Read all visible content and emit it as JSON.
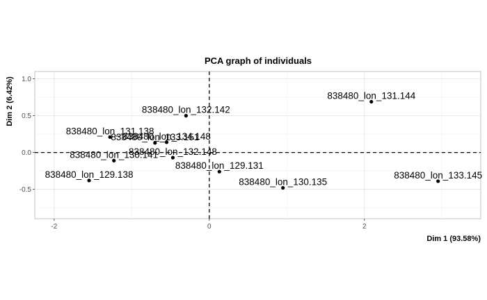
{
  "chart_data": {
    "type": "scatter",
    "title": "PCA graph of individuals",
    "xlabel": "Dim 1 (93.58%)",
    "ylabel": "Dim 2 (6.42%)",
    "xlim": [
      -2.25,
      3.5
    ],
    "ylim": [
      -0.9,
      1.1
    ],
    "xticks": [
      -2,
      0,
      2
    ],
    "xtick_labels": [
      "-2",
      "0",
      "2"
    ],
    "yticks": [
      -0.5,
      0.0,
      0.5,
      1.0
    ],
    "ytick_labels": [
      "-0.5",
      "0.0",
      "0.5",
      "1.0"
    ],
    "grid": true,
    "reference_lines": {
      "x": 0,
      "y": 0,
      "style": "dashed"
    },
    "points": [
      {
        "label": "838480_lon_131.144",
        "x": 2.09,
        "y": 0.69
      },
      {
        "label": "838480_lon_132.142",
        "x": -0.3,
        "y": 0.5
      },
      {
        "label": "838480_lon_131.138",
        "x": -1.28,
        "y": 0.21
      },
      {
        "label": "838480_lon_134.148",
        "x": -0.55,
        "y": 0.14
      },
      {
        "label": "838480_lon_133.151",
        "x": -0.7,
        "y": 0.13
      },
      {
        "label": "838480_lon_132.148",
        "x": -0.47,
        "y": -0.07
      },
      {
        "label": "838480_lon_130.141",
        "x": -1.23,
        "y": -0.11
      },
      {
        "label": "838480_lon_129.131",
        "x": 0.13,
        "y": -0.26
      },
      {
        "label": "838480_lon_129.138",
        "x": -1.55,
        "y": -0.38
      },
      {
        "label": "838480_lon_130.135",
        "x": 0.95,
        "y": -0.48
      },
      {
        "label": "838480_lon_133.145",
        "x": 2.95,
        "y": -0.39
      }
    ]
  }
}
